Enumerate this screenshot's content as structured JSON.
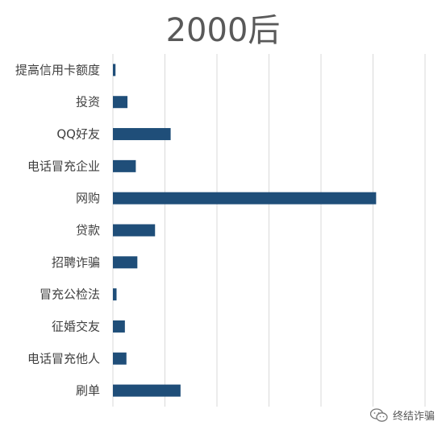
{
  "chart_data": {
    "type": "bar",
    "orientation": "horizontal",
    "title": "2000后",
    "xlabel": "",
    "ylabel": "",
    "categories": [
      "提高信用卡额度",
      "投资",
      "QQ好友",
      "电话冒充企业",
      "网购",
      "贷款",
      "招聘诈骗",
      "冒充公检法",
      "征婚交友",
      "电话冒充他人",
      "刷单"
    ],
    "values": [
      0.5,
      2.8,
      11.1,
      4.4,
      50.6,
      8.1,
      4.7,
      0.7,
      2.3,
      2.6,
      13.0
    ],
    "xlim": [
      0,
      60
    ],
    "x_tick_step": 10,
    "x_tick_labels_shown": false,
    "grid": true,
    "legend": "none",
    "bar_color": "#1f4e79",
    "grid_color": "#d9d9d9",
    "label_color": "#404040"
  },
  "watermark": {
    "text": "终结诈骗",
    "icon": "wechat-icon"
  }
}
